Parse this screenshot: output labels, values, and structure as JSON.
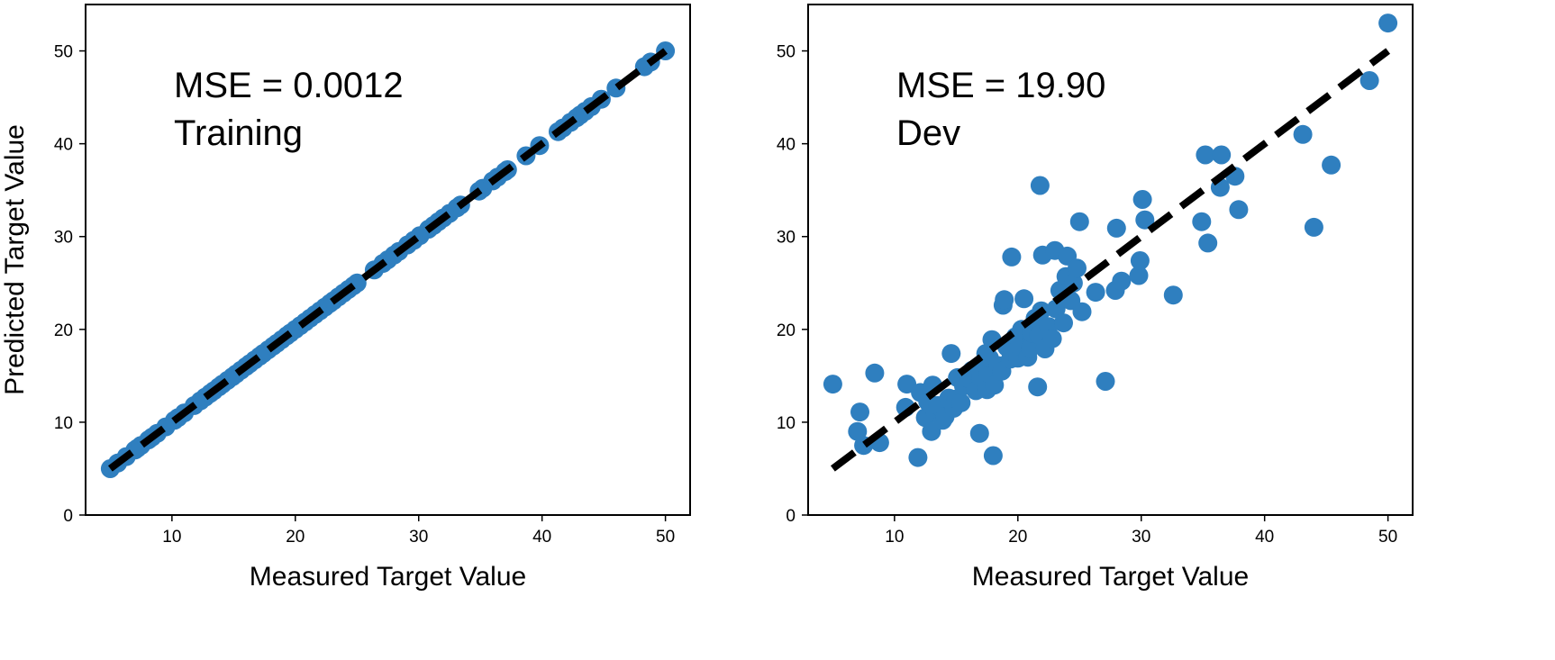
{
  "colors": {
    "points": "#2f7fbf",
    "reference_line": "#000000",
    "frame": "#000000",
    "background": "#ffffff"
  },
  "chart_data": [
    {
      "type": "scatter",
      "xlabel": "Measured Target Value",
      "ylabel": "Predicted Target Value",
      "xlim": [
        3,
        52
      ],
      "ylim": [
        0,
        55
      ],
      "xticks": [
        10,
        20,
        30,
        40,
        50
      ],
      "yticks": [
        0,
        10,
        20,
        30,
        40,
        50
      ],
      "grid": false,
      "annotations": [
        "MSE = 0.0012",
        "Training"
      ],
      "reference_line": {
        "style": "dashed",
        "from": [
          5,
          5
        ],
        "to": [
          50,
          50
        ]
      },
      "series": [
        {
          "x": [
            5.0,
            5.6,
            6.3,
            7.0,
            7.2,
            7.5,
            8.1,
            8.4,
            8.8,
            9.5,
            10.2,
            10.5,
            11.0,
            11.8,
            12.3,
            12.7,
            13.1,
            13.4,
            13.8,
            14.1,
            14.5,
            14.9,
            15.2,
            15.6,
            16.0,
            16.3,
            16.7,
            17.1,
            17.4,
            17.8,
            18.2,
            18.5,
            18.9,
            19.3,
            19.6,
            20.0,
            20.4,
            20.8,
            21.2,
            21.6,
            22.0,
            22.4,
            22.8,
            23.1,
            23.5,
            23.9,
            24.3,
            24.7,
            25.0,
            26.4,
            27.1,
            27.5,
            28.0,
            28.4,
            29.1,
            29.6,
            30.1,
            30.8,
            31.2,
            31.6,
            32.0,
            32.5,
            33.1,
            33.4,
            34.9,
            35.2,
            36.0,
            36.4,
            37.0,
            37.2,
            38.7,
            39.8,
            41.3,
            41.7,
            42.3,
            42.8,
            43.1,
            43.5,
            44.0,
            44.8,
            46.0,
            48.3,
            48.8,
            50.0
          ],
          "y": [
            5.0,
            5.6,
            6.3,
            7.0,
            7.2,
            7.5,
            8.1,
            8.4,
            8.8,
            9.5,
            10.2,
            10.5,
            11.0,
            11.8,
            12.3,
            12.7,
            13.1,
            13.4,
            13.8,
            14.1,
            14.5,
            14.9,
            15.2,
            15.6,
            16.0,
            16.3,
            16.7,
            17.1,
            17.4,
            17.8,
            18.2,
            18.5,
            18.9,
            19.3,
            19.6,
            20.0,
            20.4,
            20.8,
            21.2,
            21.6,
            22.0,
            22.4,
            22.8,
            23.1,
            23.5,
            23.9,
            24.3,
            24.7,
            25.0,
            26.4,
            27.1,
            27.5,
            28.0,
            28.4,
            29.1,
            29.6,
            30.1,
            30.8,
            31.2,
            31.6,
            32.0,
            32.5,
            33.1,
            33.4,
            34.9,
            35.2,
            36.0,
            36.4,
            37.0,
            37.2,
            38.7,
            39.8,
            41.3,
            41.7,
            42.3,
            42.8,
            43.1,
            43.5,
            44.0,
            44.8,
            46.0,
            48.3,
            48.8,
            50.0
          ]
        }
      ]
    },
    {
      "type": "scatter",
      "xlabel": "Measured Target Value",
      "ylabel": "",
      "xlim": [
        3,
        52
      ],
      "ylim": [
        0,
        55
      ],
      "xticks": [
        10,
        20,
        30,
        40,
        50
      ],
      "yticks": [
        0,
        10,
        20,
        30,
        40,
        50
      ],
      "grid": false,
      "annotations": [
        "MSE = 19.90",
        "Dev"
      ],
      "reference_line": {
        "style": "dashed",
        "from": [
          5,
          5
        ],
        "to": [
          50,
          50
        ]
      },
      "series": [
        {
          "x": [
            5.0,
            7.0,
            7.2,
            7.5,
            8.4,
            8.8,
            10.9,
            11.0,
            11.9,
            12.1,
            12.5,
            12.7,
            13.0,
            13.1,
            13.3,
            13.5,
            13.9,
            14.1,
            14.4,
            14.6,
            14.8,
            15.0,
            15.1,
            15.4,
            15.6,
            16.0,
            16.3,
            16.6,
            16.9,
            17.0,
            17.2,
            17.4,
            17.5,
            17.6,
            17.7,
            17.9,
            18.0,
            18.1,
            18.4,
            18.7,
            18.8,
            18.9,
            19.1,
            19.4,
            19.5,
            19.6,
            19.8,
            20.0,
            20.1,
            20.3,
            20.5,
            20.8,
            21.0,
            21.1,
            21.4,
            21.6,
            21.7,
            21.8,
            21.9,
            22.0,
            22.2,
            22.5,
            22.8,
            23.0,
            23.1,
            23.4,
            23.7,
            23.9,
            24.0,
            24.3,
            24.5,
            24.8,
            25.0,
            25.2,
            26.3,
            27.1,
            27.9,
            28.0,
            28.4,
            29.8,
            29.9,
            30.1,
            30.3,
            32.6,
            34.9,
            35.2,
            35.4,
            36.4,
            36.5,
            37.6,
            37.9,
            43.1,
            44.0,
            45.4,
            48.5,
            50.0
          ],
          "y": [
            14.1,
            9.0,
            11.1,
            7.5,
            15.3,
            7.8,
            11.6,
            14.1,
            6.2,
            13.2,
            10.5,
            12.2,
            9.0,
            14.0,
            11.1,
            11.8,
            10.2,
            10.6,
            12.6,
            17.4,
            11.5,
            12.5,
            14.8,
            12.1,
            13.9,
            14.7,
            15.6,
            13.4,
            8.8,
            14.9,
            16.2,
            17.4,
            13.5,
            15.3,
            16.9,
            18.9,
            6.4,
            14.0,
            16.1,
            15.5,
            22.6,
            23.2,
            18.1,
            16.8,
            27.8,
            17.6,
            19.2,
            16.9,
            18.2,
            20.0,
            23.3,
            17.0,
            18.0,
            19.6,
            21.2,
            13.8,
            19.4,
            35.5,
            22.0,
            28.0,
            17.9,
            20.3,
            19.0,
            28.5,
            22.2,
            24.2,
            20.7,
            25.7,
            27.9,
            23.1,
            25.0,
            26.6,
            31.6,
            21.9,
            24.0,
            14.4,
            24.2,
            30.9,
            25.2,
            25.8,
            27.4,
            34.0,
            31.8,
            23.7,
            31.6,
            38.8,
            29.3,
            35.3,
            38.8,
            36.5,
            32.9,
            41.0,
            31.0,
            37.7,
            46.8,
            53.0
          ]
        }
      ]
    }
  ]
}
